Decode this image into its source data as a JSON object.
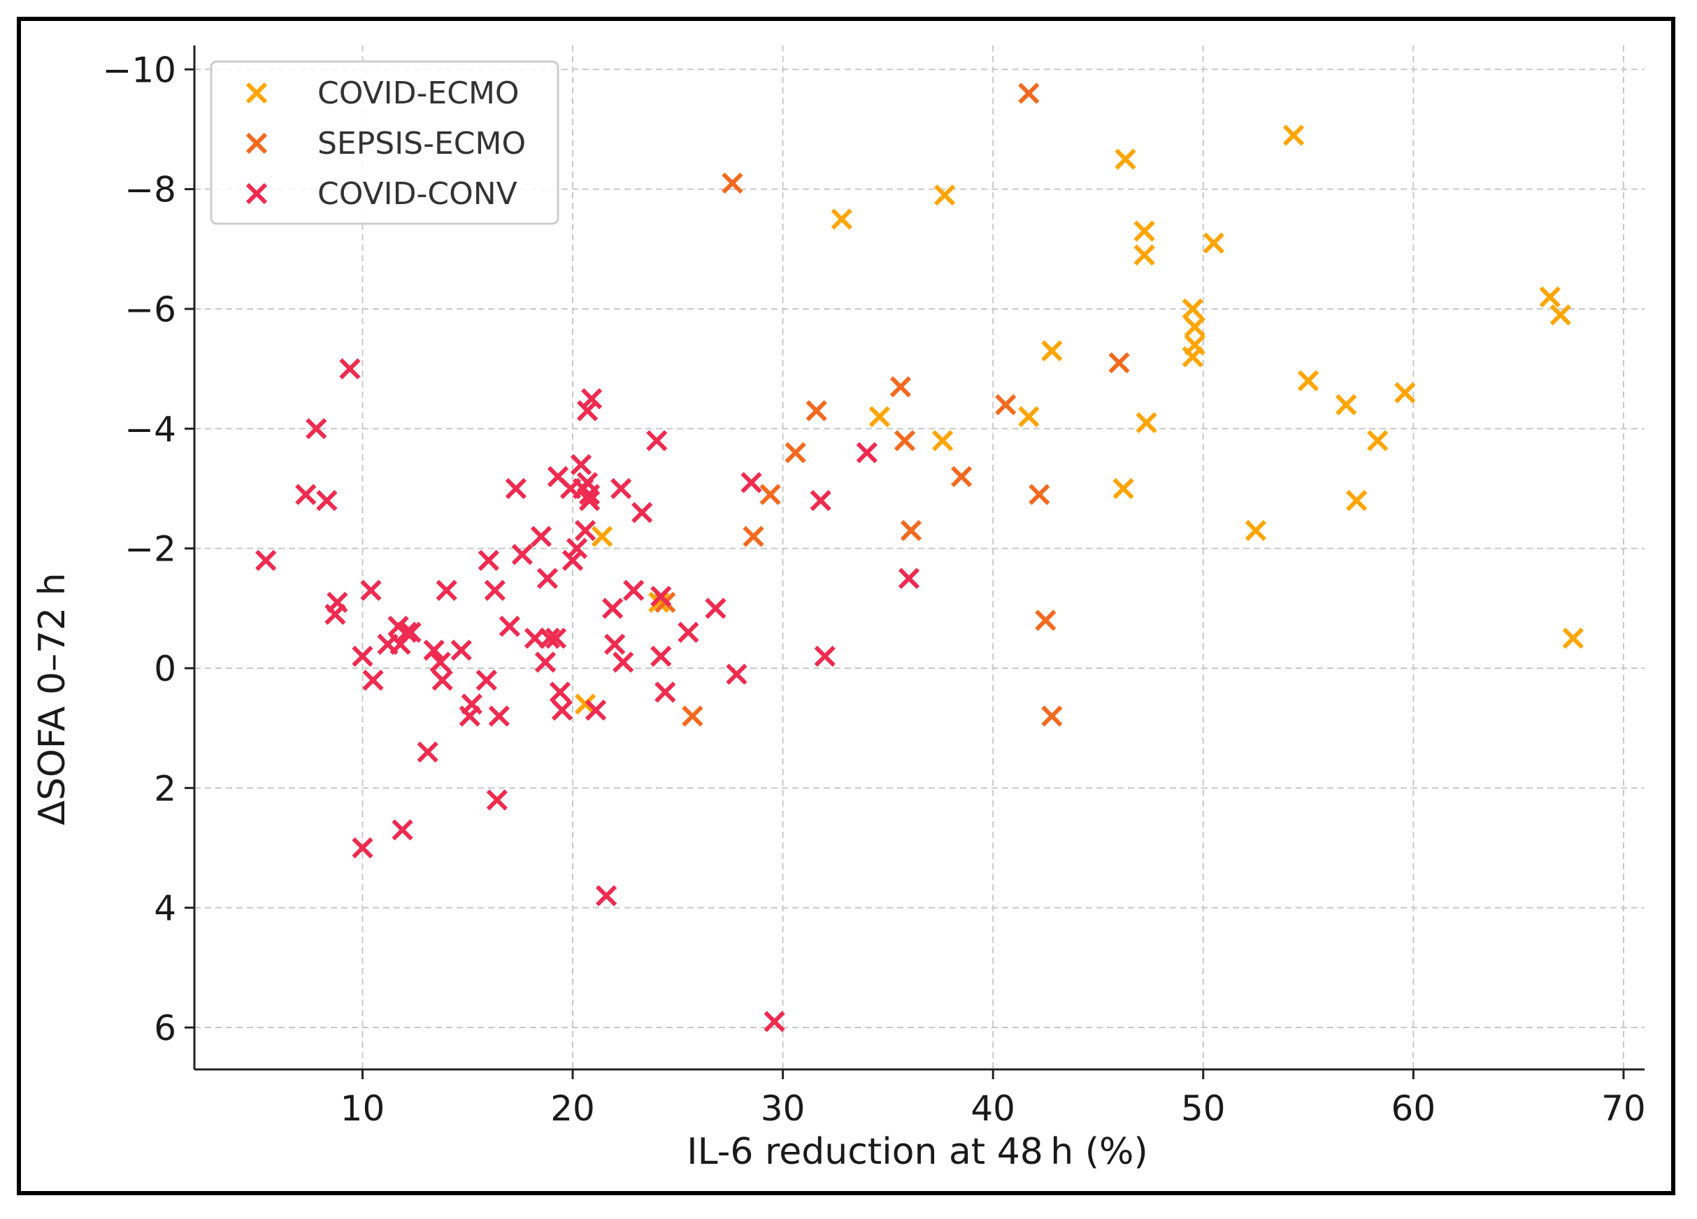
{
  "chart_data": {
    "type": "scatter",
    "title": "",
    "xlabel": "IL-6 reduction at 48 h (%)",
    "ylabel": "ΔSOFA 0–72 h",
    "xlim": [
      2,
      71
    ],
    "ylim": [
      6.7,
      -10.4
    ],
    "y_inverted": true,
    "grid": true,
    "legend_position": "top-left",
    "x_ticks": [
      10,
      20,
      30,
      40,
      50,
      60,
      70
    ],
    "y_ticks": [
      -10,
      -8,
      -6,
      -4,
      -2,
      0,
      2,
      4,
      6
    ],
    "x_tick_labels": [
      "10",
      "20",
      "30",
      "40",
      "50",
      "60",
      "70"
    ],
    "y_tick_labels": [
      "−10",
      "−8",
      "−6",
      "−4",
      "−2",
      "0",
      "2",
      "4",
      "6"
    ],
    "marker": "x",
    "series": [
      {
        "name": "COVID-ECMO",
        "color": "#FFA500",
        "points": [
          [
            21.4,
            -2.2
          ],
          [
            20.6,
            0.6
          ],
          [
            24.1,
            -1.1
          ],
          [
            32.8,
            -7.5
          ],
          [
            34.6,
            -4.2
          ],
          [
            37.6,
            -3.8
          ],
          [
            37.7,
            -7.9
          ],
          [
            41.7,
            -4.2
          ],
          [
            42.8,
            -5.3
          ],
          [
            46.3,
            -8.5
          ],
          [
            46.2,
            -3.0
          ],
          [
            47.2,
            -7.3
          ],
          [
            47.2,
            -6.9
          ],
          [
            47.3,
            -4.1
          ],
          [
            49.5,
            -6.0
          ],
          [
            49.6,
            -5.7
          ],
          [
            49.6,
            -5.4
          ],
          [
            49.5,
            -5.2
          ],
          [
            50.5,
            -7.1
          ],
          [
            52.5,
            -2.3
          ],
          [
            54.3,
            -8.9
          ],
          [
            55.0,
            -4.8
          ],
          [
            56.8,
            -4.4
          ],
          [
            57.3,
            -2.8
          ],
          [
            58.3,
            -3.8
          ],
          [
            59.6,
            -4.6
          ],
          [
            66.5,
            -6.2
          ],
          [
            67.0,
            -5.9
          ],
          [
            67.6,
            -0.5
          ]
        ]
      },
      {
        "name": "SEPSIS-ECMO",
        "color": "#F26A20",
        "points": [
          [
            24.4,
            -1.1
          ],
          [
            25.7,
            0.8
          ],
          [
            27.6,
            -8.1
          ],
          [
            28.6,
            -2.2
          ],
          [
            29.4,
            -2.9
          ],
          [
            30.6,
            -3.6
          ],
          [
            31.6,
            -4.3
          ],
          [
            35.6,
            -4.7
          ],
          [
            35.8,
            -3.8
          ],
          [
            36.1,
            -2.3
          ],
          [
            38.5,
            -3.2
          ],
          [
            40.6,
            -4.4
          ],
          [
            41.7,
            -9.6
          ],
          [
            42.2,
            -2.9
          ],
          [
            42.5,
            -0.8
          ],
          [
            42.8,
            0.8
          ],
          [
            46.0,
            -5.1
          ]
        ]
      },
      {
        "name": "COVID-CONV",
        "color": "#EE2B50",
        "points": [
          [
            5.4,
            -1.8
          ],
          [
            7.3,
            -2.9
          ],
          [
            7.8,
            -4.0
          ],
          [
            8.3,
            -2.8
          ],
          [
            8.8,
            -1.1
          ],
          [
            8.7,
            -0.9
          ],
          [
            9.4,
            -5.0
          ],
          [
            10.0,
            -0.2
          ],
          [
            10.4,
            -1.3
          ],
          [
            10.5,
            0.2
          ],
          [
            10.0,
            3.0
          ],
          [
            11.2,
            -0.4
          ],
          [
            11.7,
            -0.7
          ],
          [
            11.8,
            -0.4
          ],
          [
            12.1,
            -0.6
          ],
          [
            12.3,
            -0.6
          ],
          [
            11.9,
            2.7
          ],
          [
            13.1,
            1.4
          ],
          [
            13.4,
            -0.3
          ],
          [
            13.7,
            -0.1
          ],
          [
            13.8,
            0.2
          ],
          [
            14.0,
            -1.3
          ],
          [
            14.7,
            -0.3
          ],
          [
            15.2,
            0.6
          ],
          [
            15.1,
            0.8
          ],
          [
            15.9,
            0.2
          ],
          [
            16.0,
            -1.8
          ],
          [
            16.3,
            -1.3
          ],
          [
            16.5,
            0.8
          ],
          [
            16.4,
            2.2
          ],
          [
            17.0,
            -0.7
          ],
          [
            17.3,
            -3.0
          ],
          [
            17.6,
            -1.9
          ],
          [
            18.2,
            -0.5
          ],
          [
            18.5,
            -2.2
          ],
          [
            18.7,
            -0.1
          ],
          [
            18.8,
            -1.5
          ],
          [
            18.9,
            -0.5
          ],
          [
            19.2,
            -0.5
          ],
          [
            19.3,
            -3.2
          ],
          [
            19.4,
            0.4
          ],
          [
            19.5,
            0.7
          ],
          [
            19.9,
            -3.0
          ],
          [
            20.0,
            -1.8
          ],
          [
            20.2,
            -2.0
          ],
          [
            20.4,
            -3.4
          ],
          [
            20.5,
            -3.0
          ],
          [
            20.6,
            -2.3
          ],
          [
            20.7,
            -3.1
          ],
          [
            20.7,
            -4.3
          ],
          [
            20.8,
            -2.9
          ],
          [
            20.9,
            -4.5
          ],
          [
            20.8,
            -2.8
          ],
          [
            21.1,
            0.7
          ],
          [
            21.6,
            3.8
          ],
          [
            21.9,
            -1.0
          ],
          [
            22.0,
            -0.4
          ],
          [
            22.3,
            -3.0
          ],
          [
            22.4,
            -0.1
          ],
          [
            22.9,
            -1.3
          ],
          [
            23.3,
            -2.6
          ],
          [
            24.0,
            -3.8
          ],
          [
            24.2,
            -1.2
          ],
          [
            24.2,
            -0.2
          ],
          [
            24.4,
            0.4
          ],
          [
            25.5,
            -0.6
          ],
          [
            26.8,
            -1.0
          ],
          [
            27.8,
            0.1
          ],
          [
            28.5,
            -3.1
          ],
          [
            29.6,
            5.9
          ],
          [
            31.8,
            -2.8
          ],
          [
            32.0,
            -0.2
          ],
          [
            34.0,
            -3.6
          ],
          [
            36.0,
            -1.5
          ]
        ]
      }
    ]
  }
}
